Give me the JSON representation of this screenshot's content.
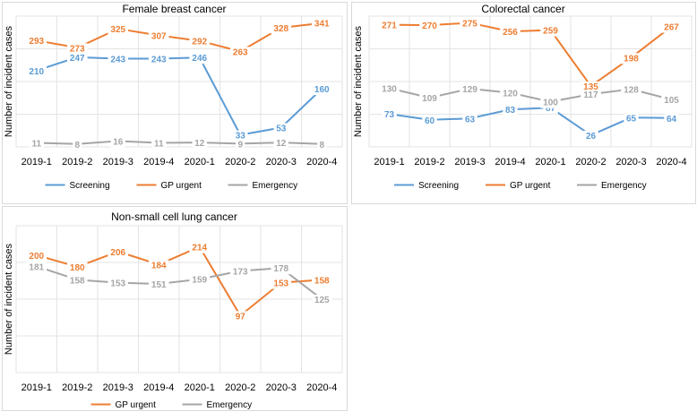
{
  "chart_data": [
    {
      "type": "line",
      "title": "Female breast cancer",
      "xlabel": "",
      "ylabel": "Number of incident cases",
      "categories": [
        "2019-1",
        "2019-2",
        "2019-3",
        "2019-4",
        "2020-1",
        "2020-2",
        "2020-3",
        "2020-4"
      ],
      "ylim": [
        0,
        360
      ],
      "grid": true,
      "legend": "bottom",
      "series": [
        {
          "name": "Screening",
          "color": "#5b9bd5",
          "values": [
            210,
            247,
            243,
            243,
            246,
            33,
            53,
            160
          ]
        },
        {
          "name": "GP urgent",
          "color": "#ed7d31",
          "values": [
            293,
            273,
            325,
            307,
            292,
            263,
            328,
            341
          ]
        },
        {
          "name": "Emergency",
          "color": "#a5a5a5",
          "values": [
            11,
            8,
            16,
            11,
            12,
            9,
            12,
            8
          ]
        }
      ]
    },
    {
      "type": "line",
      "title": "Colorectal cancer",
      "xlabel": "",
      "ylabel": "Number of incident cases",
      "categories": [
        "2019-1",
        "2019-2",
        "2019-3",
        "2019-4",
        "2020-1",
        "2020-2",
        "2020-3",
        "2020-4"
      ],
      "ylim": [
        0,
        290
      ],
      "grid": true,
      "legend": "bottom",
      "series": [
        {
          "name": "Screening",
          "color": "#5b9bd5",
          "values": [
            73,
            60,
            63,
            83,
            87,
            26,
            65,
            64
          ]
        },
        {
          "name": "GP urgent",
          "color": "#ed7d31",
          "values": [
            271,
            270,
            275,
            256,
            259,
            135,
            198,
            267
          ]
        },
        {
          "name": "Emergency",
          "color": "#a5a5a5",
          "values": [
            130,
            109,
            129,
            120,
            100,
            117,
            128,
            105
          ]
        }
      ]
    },
    {
      "type": "line",
      "title": "Non-small cell lung cancer",
      "xlabel": "",
      "ylabel": "Number of incident cases",
      "categories": [
        "2019-1",
        "2019-2",
        "2019-3",
        "2019-4",
        "2020-1",
        "2020-2",
        "2020-3",
        "2020-4"
      ],
      "ylim": [
        0,
        250
      ],
      "grid": true,
      "legend": "bottom",
      "series": [
        {
          "name": "GP urgent",
          "color": "#ed7d31",
          "values": [
            200,
            180,
            206,
            184,
            214,
            97,
            153,
            158
          ]
        },
        {
          "name": "Emergency",
          "color": "#a5a5a5",
          "values": [
            181,
            158,
            153,
            151,
            159,
            173,
            178,
            125
          ]
        }
      ]
    }
  ]
}
